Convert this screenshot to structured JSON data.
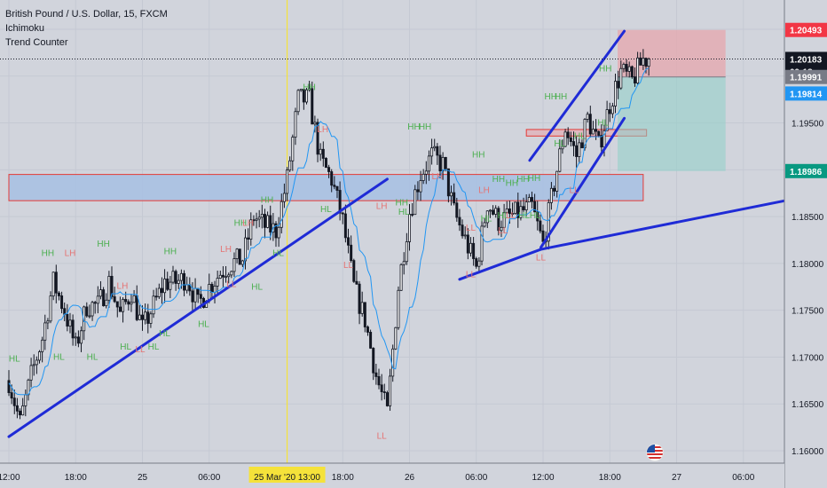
{
  "header": {
    "symbol_title": "British Pound / U.S. Dollar, 15, FXCM",
    "indicators": [
      "Ichimoku",
      "Trend Counter"
    ]
  },
  "chart_data": {
    "type": "candlestick",
    "y_range": [
      1.1575,
      1.2095
    ],
    "x_range_hours": [
      -36,
      54
    ],
    "y_ticks": [
      1.205,
      1.2,
      1.195,
      1.19,
      1.185,
      1.18,
      1.175,
      1.17,
      1.165,
      1.16
    ],
    "y_tick_labels": [
      "1.20500",
      "1.20000",
      "1.19500",
      "1.19000",
      "1.18500",
      "1.18000",
      "1.17500",
      "1.17000",
      "1.16500",
      "1.16000"
    ],
    "x_ticks": [
      {
        "label": "12:00",
        "h": -36
      },
      {
        "label": "18:00",
        "h": -30
      },
      {
        "label": "25",
        "h": -24
      },
      {
        "label": "06:00",
        "h": -18
      },
      {
        "label": "18:00",
        "h": -6
      },
      {
        "label": "26",
        "h": 0
      },
      {
        "label": "06:00",
        "h": 6
      },
      {
        "label": "12:00",
        "h": 12
      },
      {
        "label": "18:00",
        "h": 18
      },
      {
        "label": "27",
        "h": 24
      },
      {
        "label": "06:00",
        "h": 30
      }
    ],
    "crosshair": {
      "label_date": "25 Mar '20",
      "label_time": "13:00",
      "h": -11
    },
    "price_labels": [
      {
        "text": "1.20493",
        "value": 1.20493,
        "bg": "#f23645",
        "fg": "#ffffff"
      },
      {
        "text": "1.20183",
        "value": 1.20183,
        "bg": "#131722",
        "fg": "#ffffff"
      },
      {
        "text": "09:18",
        "value": 1.2005,
        "bg": "#131722",
        "fg": "#ffffff"
      },
      {
        "text": "1.19991",
        "value": 1.19991,
        "bg": "#787b86",
        "fg": "#ffffff"
      },
      {
        "text": "1.19814",
        "value": 1.19814,
        "bg": "#2196f3",
        "fg": "#ffffff"
      },
      {
        "text": "1.18986",
        "value": 1.18986,
        "bg": "#089981",
        "fg": "#ffffff"
      }
    ],
    "last_price": 1.20183,
    "anchors": [
      [
        -36,
        1.1675
      ],
      [
        -35,
        1.163
      ],
      [
        -34,
        1.168
      ],
      [
        -33,
        1.172
      ],
      [
        -32,
        1.178
      ],
      [
        -31,
        1.175
      ],
      [
        -30,
        1.171
      ],
      [
        -29,
        1.1755
      ],
      [
        -28,
        1.1755
      ],
      [
        -27,
        1.178
      ],
      [
        -26,
        1.1745
      ],
      [
        -25,
        1.177
      ],
      [
        -24,
        1.173
      ],
      [
        -23,
        1.1755
      ],
      [
        -22,
        1.178
      ],
      [
        -21,
        1.178
      ],
      [
        -20,
        1.1785
      ],
      [
        -19,
        1.1755
      ],
      [
        -18,
        1.1775
      ],
      [
        -17,
        1.179
      ],
      [
        -16,
        1.18
      ],
      [
        -15,
        1.1805
      ],
      [
        -14,
        1.185
      ],
      [
        -13,
        1.184
      ],
      [
        -12,
        1.1835
      ],
      [
        -11,
        1.189
      ],
      [
        -10,
        1.1975
      ],
      [
        -9,
        1.1975
      ],
      [
        -8,
        1.191
      ],
      [
        -7,
        1.189
      ],
      [
        -6,
        1.1845
      ],
      [
        -5,
        1.1775
      ],
      [
        -4,
        1.174
      ],
      [
        -3,
        1.168
      ],
      [
        -2,
        1.164
      ],
      [
        -1,
        1.1775
      ],
      [
        0,
        1.1855
      ],
      [
        1,
        1.1895
      ],
      [
        2,
        1.1915
      ],
      [
        3,
        1.1905
      ],
      [
        4,
        1.1855
      ],
      [
        5,
        1.1825
      ],
      [
        6,
        1.1795
      ],
      [
        7,
        1.1865
      ],
      [
        8,
        1.1845
      ],
      [
        9,
        1.185
      ],
      [
        10,
        1.1855
      ],
      [
        11,
        1.186
      ],
      [
        12,
        1.182
      ],
      [
        13,
        1.1885
      ],
      [
        14,
        1.1945
      ],
      [
        15,
        1.1915
      ],
      [
        16,
        1.1955
      ],
      [
        17,
        1.1925
      ],
      [
        18,
        1.197
      ],
      [
        19,
        1.2005
      ],
      [
        20,
        1.1995
      ],
      [
        21,
        1.2018
      ]
    ],
    "annotations": [
      {
        "h": -35.5,
        "v": 1.1695,
        "t": "HL",
        "c": "#4caf50"
      },
      {
        "h": -32.5,
        "v": 1.1808,
        "t": "HH",
        "c": "#4caf50"
      },
      {
        "h": -31.5,
        "v": 1.1697,
        "t": "HL",
        "c": "#4caf50"
      },
      {
        "h": -30.5,
        "v": 1.1808,
        "t": "LH",
        "c": "#e57373"
      },
      {
        "h": -28.5,
        "v": 1.1697,
        "t": "HL",
        "c": "#4caf50"
      },
      {
        "h": -27.5,
        "v": 1.1818,
        "t": "HH",
        "c": "#4caf50"
      },
      {
        "h": -25.5,
        "v": 1.1708,
        "t": "HL",
        "c": "#4caf50"
      },
      {
        "h": -25.8,
        "v": 1.1773,
        "t": "LH",
        "c": "#e57373"
      },
      {
        "h": -24.2,
        "v": 1.1705,
        "t": "LL",
        "c": "#e57373"
      },
      {
        "h": -23,
        "v": 1.1708,
        "t": "HL",
        "c": "#4caf50"
      },
      {
        "h": -22,
        "v": 1.1722,
        "t": "HL",
        "c": "#4caf50"
      },
      {
        "h": -21.5,
        "v": 1.181,
        "t": "HH",
        "c": "#4caf50"
      },
      {
        "h": -18.5,
        "v": 1.1732,
        "t": "HL",
        "c": "#4caf50"
      },
      {
        "h": -16.5,
        "v": 1.1812,
        "t": "LH",
        "c": "#e57373"
      },
      {
        "h": -16,
        "v": 1.1775,
        "t": "LL",
        "c": "#e57373"
      },
      {
        "h": -15.2,
        "v": 1.184,
        "t": "HH",
        "c": "#4caf50"
      },
      {
        "h": -14.5,
        "v": 1.184,
        "t": "LH",
        "c": "#e57373"
      },
      {
        "h": -13.7,
        "v": 1.1772,
        "t": "HL",
        "c": "#4caf50"
      },
      {
        "h": -12.8,
        "v": 1.1865,
        "t": "HH",
        "c": "#4caf50"
      },
      {
        "h": -11.8,
        "v": 1.1808,
        "t": "HL",
        "c": "#4caf50"
      },
      {
        "h": -9,
        "v": 1.1985,
        "t": "HH",
        "c": "#4caf50"
      },
      {
        "h": -7.8,
        "v": 1.194,
        "t": "LH",
        "c": "#e57373"
      },
      {
        "h": -7.5,
        "v": 1.1855,
        "t": "HL",
        "c": "#4caf50"
      },
      {
        "h": -5.5,
        "v": 1.1795,
        "t": "LL",
        "c": "#e57373"
      },
      {
        "h": -2.5,
        "v": 1.1613,
        "t": "LL",
        "c": "#e57373"
      },
      {
        "h": -2.5,
        "v": 1.1858,
        "t": "LH",
        "c": "#e57373"
      },
      {
        "h": -0.7,
        "v": 1.1862,
        "t": "HH",
        "c": "#4caf50"
      },
      {
        "h": -0.5,
        "v": 1.1852,
        "t": "HL",
        "c": "#4caf50"
      },
      {
        "h": 0.4,
        "v": 1.1943,
        "t": "HH",
        "c": "#4caf50"
      },
      {
        "h": 1.4,
        "v": 1.1943,
        "t": "HH",
        "c": "#4caf50"
      },
      {
        "h": 2.5,
        "v": 1.189,
        "t": "LH",
        "c": "#e57373"
      },
      {
        "h": 5.5,
        "v": 1.1785,
        "t": "LL",
        "c": "#e57373"
      },
      {
        "h": 5.5,
        "v": 1.1835,
        "t": "LL",
        "c": "#e57373"
      },
      {
        "h": 6.2,
        "v": 1.1913,
        "t": "HH",
        "c": "#4caf50"
      },
      {
        "h": 6.7,
        "v": 1.1875,
        "t": "LH",
        "c": "#e57373"
      },
      {
        "h": 6.9,
        "v": 1.1845,
        "t": "HL",
        "c": "#4caf50"
      },
      {
        "h": 8,
        "v": 1.1887,
        "t": "HH",
        "c": "#4caf50"
      },
      {
        "h": 8.4,
        "v": 1.1848,
        "t": "HL",
        "c": "#4caf50"
      },
      {
        "h": 8.4,
        "v": 1.1832,
        "t": "LL",
        "c": "#e57373"
      },
      {
        "h": 9.2,
        "v": 1.1883,
        "t": "HH",
        "c": "#4caf50"
      },
      {
        "h": 9.1,
        "v": 1.1848,
        "t": "LL",
        "c": "#e57373"
      },
      {
        "h": 10.2,
        "v": 1.1887,
        "t": "HH",
        "c": "#4caf50"
      },
      {
        "h": 10.3,
        "v": 1.1848,
        "t": "HL",
        "c": "#4caf50"
      },
      {
        "h": 11.2,
        "v": 1.1888,
        "t": "HH",
        "c": "#4caf50"
      },
      {
        "h": 11.3,
        "v": 1.1848,
        "t": "HL",
        "c": "#4caf50"
      },
      {
        "h": 11.8,
        "v": 1.1803,
        "t": "LL",
        "c": "#e57373"
      },
      {
        "h": 12.7,
        "v": 1.1975,
        "t": "HH",
        "c": "#4caf50"
      },
      {
        "h": 13.6,
        "v": 1.1975,
        "t": "HH",
        "c": "#4caf50"
      },
      {
        "h": 13.5,
        "v": 1.1925,
        "t": "HL",
        "c": "#4caf50"
      },
      {
        "h": 14.8,
        "v": 1.1875,
        "t": "LL",
        "c": "#e57373"
      },
      {
        "h": 15.3,
        "v": 1.1933,
        "t": "HL",
        "c": "#4caf50"
      },
      {
        "h": 17.6,
        "v": 1.2005,
        "t": "HH",
        "c": "#4caf50"
      },
      {
        "h": 17.4,
        "v": 1.1947,
        "t": "HL",
        "c": "#4caf50"
      }
    ],
    "trendlines": [
      {
        "h1": -36,
        "v1": 1.1615,
        "h2": -2,
        "v2": 1.189
      },
      {
        "h1": 4.5,
        "v1": 1.1783,
        "h2": 11.8,
        "v2": 1.1815
      },
      {
        "h1": 11.8,
        "v1": 1.1815,
        "h2": 54,
        "v2": 1.1915
      },
      {
        "h1": 11.8,
        "v1": 1.1817,
        "h2": 19.3,
        "v2": 1.1955
      },
      {
        "h1": 10.8,
        "v1": 1.191,
        "h2": 19.3,
        "v2": 1.2048
      }
    ],
    "zones": [
      {
        "h1": -36,
        "h2": 21,
        "v_top": 1.1895,
        "v_bot": 1.1867,
        "fill": "#a7c0e3",
        "stroke": "#e53935"
      },
      {
        "h1": 10.5,
        "h2": 21.3,
        "v_top": 1.1943,
        "v_bot": 1.1936,
        "fill": "#e0b4bc",
        "stroke": "#e53935"
      }
    ],
    "position": {
      "h1": 18.7,
      "h2": 28.4,
      "entry": 1.19991,
      "stop": 1.20493,
      "target": 1.18986
    }
  }
}
